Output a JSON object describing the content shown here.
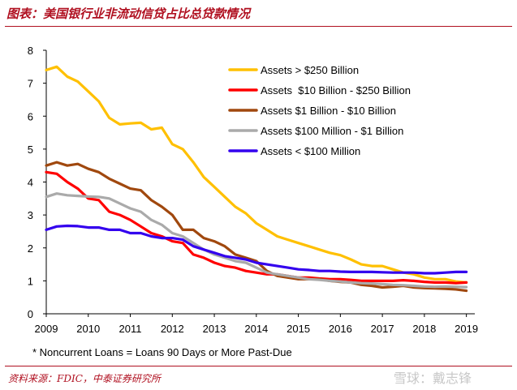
{
  "header": {
    "title": "图表：美国银行业非流动信贷占比总贷款情况"
  },
  "footnote": "* Noncurrent Loans = Loans 90 Days or More Past-Due",
  "source": "资料来源：FDIC，中泰证券研究所",
  "watermark": "雪球：戴志锋",
  "chart_data": {
    "type": "line",
    "title": "",
    "xlabel": "",
    "ylabel": "",
    "xlim": [
      2009,
      2019.2
    ],
    "ylim": [
      0,
      8
    ],
    "x_ticks": [
      "2009",
      "2010",
      "2011",
      "2012",
      "2013",
      "2014",
      "2015",
      "2016",
      "2017",
      "2018",
      "2019"
    ],
    "y_ticks": [
      "0",
      "1",
      "2",
      "3",
      "4",
      "5",
      "6",
      "7",
      "8"
    ],
    "grid": false,
    "legend_position": "top-right",
    "x": [
      2009.0,
      2009.25,
      2009.5,
      2009.75,
      2010.0,
      2010.25,
      2010.5,
      2010.75,
      2011.0,
      2011.25,
      2011.5,
      2011.75,
      2012.0,
      2012.25,
      2012.5,
      2012.75,
      2013.0,
      2013.25,
      2013.5,
      2013.75,
      2014.0,
      2014.25,
      2014.5,
      2014.75,
      2015.0,
      2015.25,
      2015.5,
      2015.75,
      2016.0,
      2016.25,
      2016.5,
      2016.75,
      2017.0,
      2017.25,
      2017.5,
      2017.75,
      2018.0,
      2018.25,
      2018.5,
      2018.75,
      2019.0
    ],
    "series": [
      {
        "name": "Assets > $250 Billion",
        "color": "#ffc000",
        "values": [
          7.4,
          7.5,
          7.2,
          7.05,
          6.75,
          6.45,
          5.95,
          5.75,
          5.78,
          5.8,
          5.6,
          5.65,
          5.15,
          5.0,
          4.6,
          4.15,
          3.85,
          3.55,
          3.25,
          3.05,
          2.75,
          2.55,
          2.35,
          2.25,
          2.15,
          2.05,
          1.95,
          1.85,
          1.78,
          1.65,
          1.5,
          1.45,
          1.45,
          1.35,
          1.25,
          1.2,
          1.1,
          1.05,
          1.05,
          0.98,
          0.95
        ]
      },
      {
        "name": "Assets  $10 Billion - $250 Billion",
        "color": "#ff0000",
        "values": [
          4.3,
          4.25,
          4.0,
          3.8,
          3.5,
          3.45,
          3.1,
          3.0,
          2.85,
          2.65,
          2.45,
          2.35,
          2.2,
          2.15,
          1.8,
          1.7,
          1.55,
          1.45,
          1.4,
          1.3,
          1.25,
          1.2,
          1.2,
          1.15,
          1.1,
          1.1,
          1.07,
          1.05,
          1.05,
          1.03,
          1.0,
          1.0,
          1.0,
          1.0,
          1.02,
          1.0,
          0.97,
          0.95,
          0.95,
          0.93,
          0.95
        ]
      },
      {
        "name": "Assets $1 Billion - $10 Billion",
        "color": "#a0480e",
        "values": [
          4.5,
          4.6,
          4.5,
          4.55,
          4.4,
          4.3,
          4.1,
          3.95,
          3.8,
          3.75,
          3.45,
          3.25,
          3.0,
          2.55,
          2.55,
          2.3,
          2.2,
          2.05,
          1.8,
          1.7,
          1.6,
          1.3,
          1.15,
          1.1,
          1.05,
          1.05,
          1.05,
          1.0,
          0.97,
          0.95,
          0.88,
          0.85,
          0.8,
          0.82,
          0.85,
          0.8,
          0.78,
          0.77,
          0.76,
          0.74,
          0.7
        ]
      },
      {
        "name": "Assets $100 Million - $1 Billion",
        "color": "#aaaaaa",
        "values": [
          3.55,
          3.65,
          3.6,
          3.58,
          3.56,
          3.55,
          3.5,
          3.35,
          3.2,
          3.1,
          2.85,
          2.7,
          2.45,
          2.35,
          2.15,
          1.95,
          1.8,
          1.7,
          1.6,
          1.55,
          1.4,
          1.25,
          1.2,
          1.15,
          1.1,
          1.05,
          1.03,
          1.0,
          0.98,
          0.95,
          0.93,
          0.92,
          0.9,
          0.88,
          0.87,
          0.85,
          0.83,
          0.82,
          0.83,
          0.82,
          0.81
        ]
      },
      {
        "name": "Assets < $100 Million",
        "color": "#3300ee",
        "values": [
          2.55,
          2.65,
          2.67,
          2.66,
          2.62,
          2.62,
          2.55,
          2.55,
          2.45,
          2.45,
          2.35,
          2.3,
          2.3,
          2.25,
          2.05,
          1.95,
          1.85,
          1.75,
          1.7,
          1.65,
          1.55,
          1.5,
          1.45,
          1.4,
          1.35,
          1.33,
          1.3,
          1.3,
          1.28,
          1.27,
          1.27,
          1.27,
          1.26,
          1.25,
          1.25,
          1.25,
          1.23,
          1.23,
          1.25,
          1.27,
          1.27
        ]
      }
    ]
  }
}
